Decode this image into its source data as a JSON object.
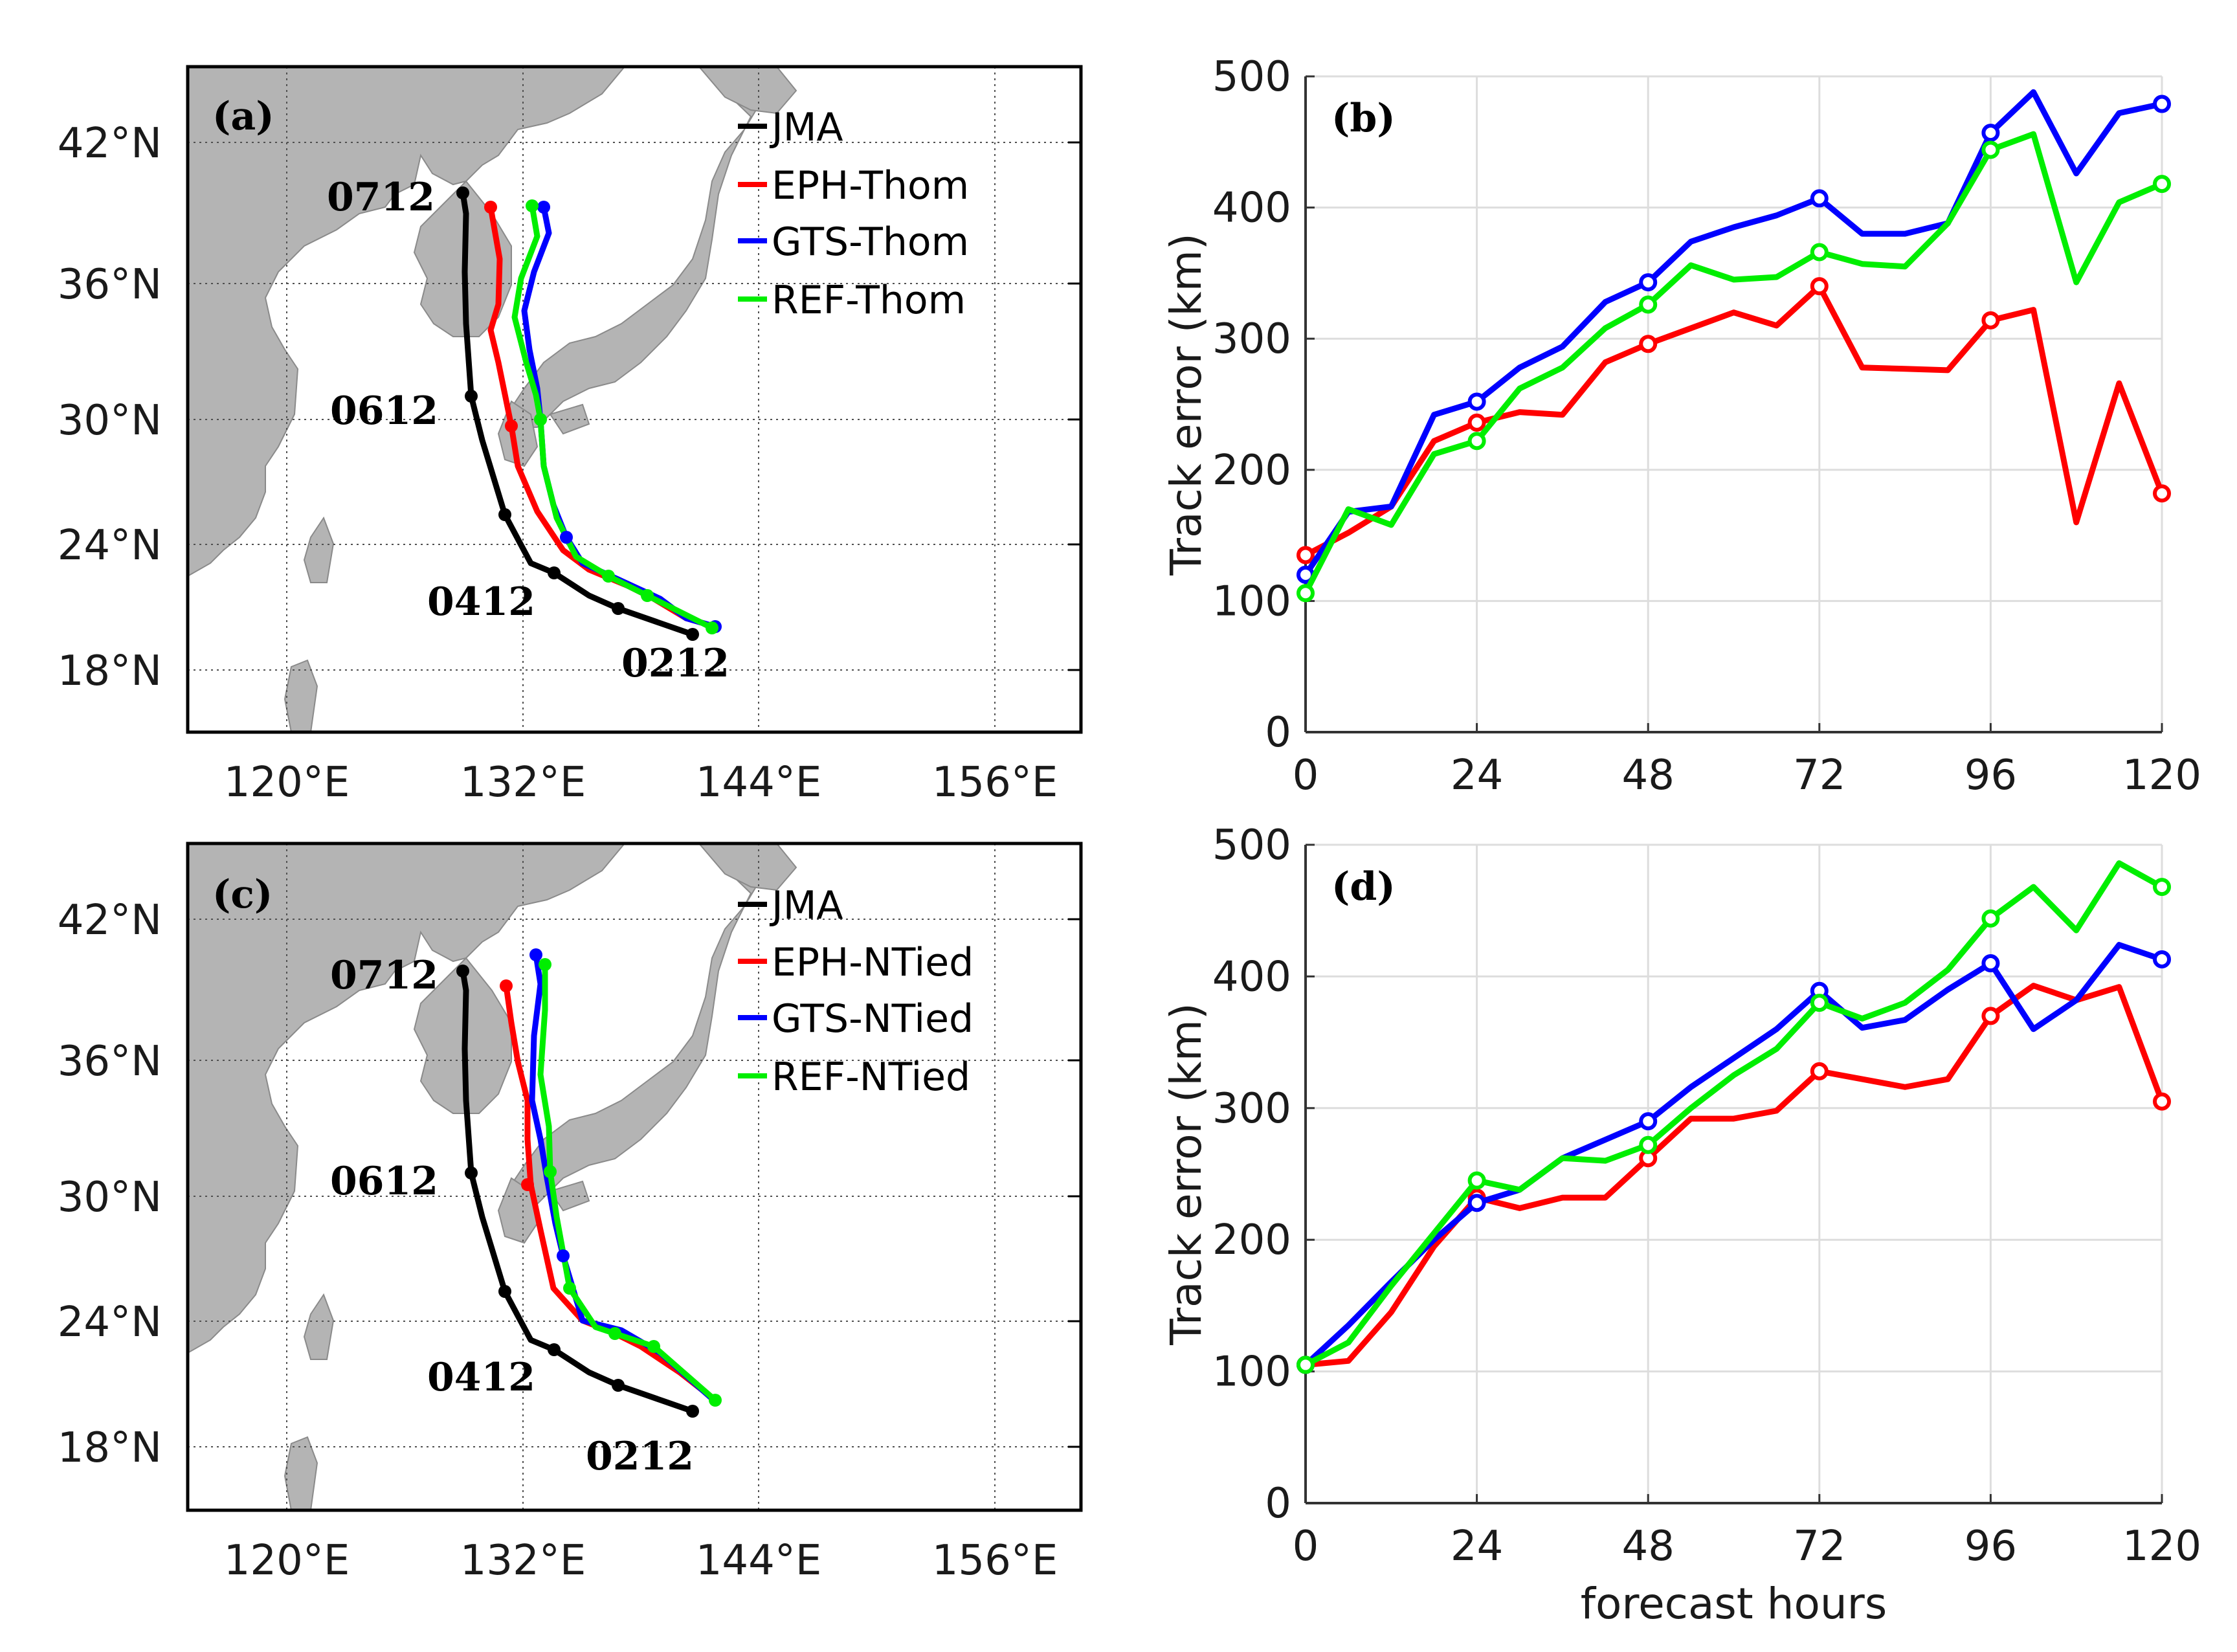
{
  "colors": {
    "JMA": "#000000",
    "EPH": "#ff0000",
    "GTS": "#0000ff",
    "REF": "#00ee00",
    "land": "#b4b4b4"
  },
  "maps": [
    {
      "panel_label": "(a)",
      "legend": [
        "JMA",
        "EPH-Thom",
        "GTS-Thom",
        "REF-Thom"
      ],
      "lat_ticks": [
        "18°N",
        "24°N",
        "30°N",
        "36°N",
        "42°N"
      ],
      "lon_ticks": [
        "120°E",
        "132°E",
        "144°E",
        "156°E"
      ],
      "track_labels": [
        "0712",
        "0612",
        "0412",
        "0212"
      ]
    },
    {
      "panel_label": "(c)",
      "legend": [
        "JMA",
        "EPH-NTied",
        "GTS-NTied",
        "REF-NTied"
      ],
      "lat_ticks": [
        "18°N",
        "24°N",
        "30°N",
        "36°N",
        "42°N"
      ],
      "lon_ticks": [
        "120°E",
        "132°E",
        "144°E",
        "156°E"
      ],
      "track_labels": [
        "0712",
        "0612",
        "0412",
        "0212"
      ]
    }
  ],
  "chart_data": [
    {
      "type": "line",
      "panel_label": "(b)",
      "ylabel": "Track error (km)",
      "xlabel": "",
      "x": [
        0,
        6,
        12,
        18,
        24,
        30,
        36,
        42,
        48,
        54,
        60,
        66,
        72,
        78,
        84,
        90,
        96,
        102,
        108,
        114,
        120
      ],
      "xticks": [
        0,
        24,
        48,
        72,
        96,
        120
      ],
      "yticks": [
        0,
        100,
        200,
        300,
        400,
        500
      ],
      "xlim": [
        0,
        120
      ],
      "ylim": [
        0,
        500
      ],
      "grid": true,
      "series": [
        {
          "key": "EPH",
          "values": [
            135,
            152,
            172,
            222,
            236,
            244,
            242,
            282,
            296,
            308,
            320,
            310,
            340,
            278,
            277,
            276,
            314,
            322,
            160,
            266,
            182
          ]
        },
        {
          "key": "GTS",
          "values": [
            120,
            168,
            172,
            242,
            252,
            278,
            294,
            328,
            343,
            374,
            385,
            394,
            407,
            380,
            380,
            388,
            457,
            488,
            426,
            472,
            479
          ]
        },
        {
          "key": "REF",
          "values": [
            106,
            170,
            158,
            212,
            222,
            262,
            278,
            308,
            326,
            356,
            345,
            347,
            366,
            357,
            355,
            388,
            444,
            456,
            343,
            404,
            418
          ]
        }
      ]
    },
    {
      "type": "line",
      "panel_label": "(d)",
      "ylabel": "Track error (km)",
      "xlabel": "forecast hours",
      "x": [
        0,
        6,
        12,
        18,
        24,
        30,
        36,
        42,
        48,
        54,
        60,
        66,
        72,
        78,
        84,
        90,
        96,
        102,
        108,
        114,
        120
      ],
      "xticks": [
        0,
        24,
        48,
        72,
        96,
        120
      ],
      "yticks": [
        0,
        100,
        200,
        300,
        400,
        500
      ],
      "xlim": [
        0,
        120
      ],
      "ylim": [
        0,
        500
      ],
      "grid": true,
      "series": [
        {
          "key": "EPH",
          "values": [
            105,
            108,
            145,
            195,
            232,
            224,
            232,
            232,
            262,
            292,
            292,
            298,
            328,
            322,
            316,
            322,
            370,
            393,
            382,
            392,
            305
          ]
        },
        {
          "key": "GTS",
          "values": [
            105,
            135,
            168,
            200,
            228,
            238,
            262,
            276,
            290,
            316,
            338,
            360,
            389,
            361,
            367,
            390,
            410,
            360,
            382,
            424,
            413
          ]
        },
        {
          "key": "REF",
          "values": [
            105,
            122,
            165,
            205,
            245,
            238,
            262,
            260,
            272,
            300,
            325,
            345,
            380,
            368,
            380,
            405,
            444,
            468,
            435,
            486,
            468
          ]
        }
      ]
    }
  ]
}
